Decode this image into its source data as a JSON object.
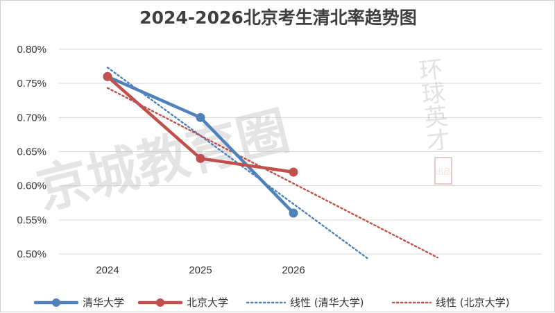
{
  "chart_data": {
    "type": "line",
    "title": "2024-2026北京考生清北率趋势图",
    "xlabel": "",
    "ylabel": "",
    "categories": [
      "2024",
      "2025",
      "2026"
    ],
    "ylim": [
      0.005,
      0.008
    ],
    "y_ticks": [
      0.005,
      0.0055,
      0.006,
      0.0065,
      0.007,
      0.0075,
      0.008
    ],
    "y_tick_labels": [
      "0.50%",
      "0.55%",
      "0.60%",
      "0.65%",
      "0.70%",
      "0.75%",
      "0.80%"
    ],
    "grid": true,
    "legend_position": "bottom",
    "series": [
      {
        "name": "清华大学",
        "values": [
          0.0076,
          0.007,
          0.0056
        ],
        "color": "#4f81bd",
        "style": "solid-marker"
      },
      {
        "name": "北京大学",
        "values": [
          0.0076,
          0.0064,
          0.0062
        ],
        "color": "#c0504d",
        "style": "solid-marker"
      }
    ],
    "trendlines": [
      {
        "name": "线性 (清华大学)",
        "of": "清华大学",
        "type": "linear",
        "color": "#4f81bd",
        "x_range": [
          2024,
          2026.8
        ]
      },
      {
        "name": "线性 (北京大学)",
        "of": "北京大学",
        "type": "linear",
        "color": "#c0504d",
        "x_range": [
          2024,
          2027.55
        ]
      }
    ]
  },
  "watermark": {
    "main_text": "京城教育圈",
    "script_text": "环球英才",
    "seal_text": "出品",
    "color": "#b3b3b3"
  }
}
